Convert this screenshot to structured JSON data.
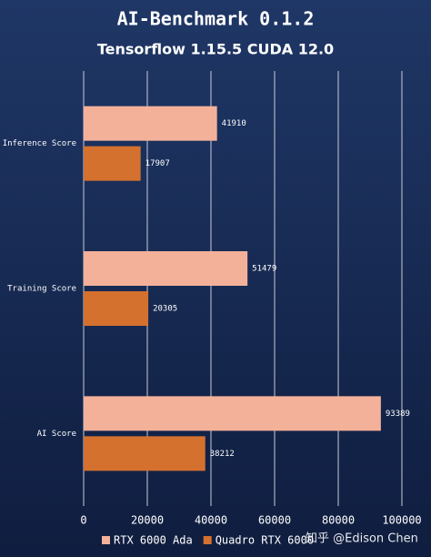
{
  "chart_data": {
    "type": "hbar",
    "title": "AI-Benchmark 0.1.2",
    "subtitle": "Tensorflow 1.15.5 CUDA 12.0",
    "categories": [
      "Inference Score",
      "Training Score",
      "AI Score"
    ],
    "series": [
      {
        "name": "RTX 6000 Ada",
        "color": "#f4b19a",
        "values": [
          41910,
          51479,
          93389
        ]
      },
      {
        "name": "Quadro RTX 6000",
        "color": "#d4712f",
        "values": [
          17907,
          20305,
          38212
        ]
      }
    ],
    "xlim": [
      0,
      100000
    ],
    "xticks": [
      0,
      20000,
      40000,
      60000,
      80000,
      100000
    ],
    "grid": true,
    "legend": "bottom",
    "watermark": "知乎 @Edison Chen"
  }
}
